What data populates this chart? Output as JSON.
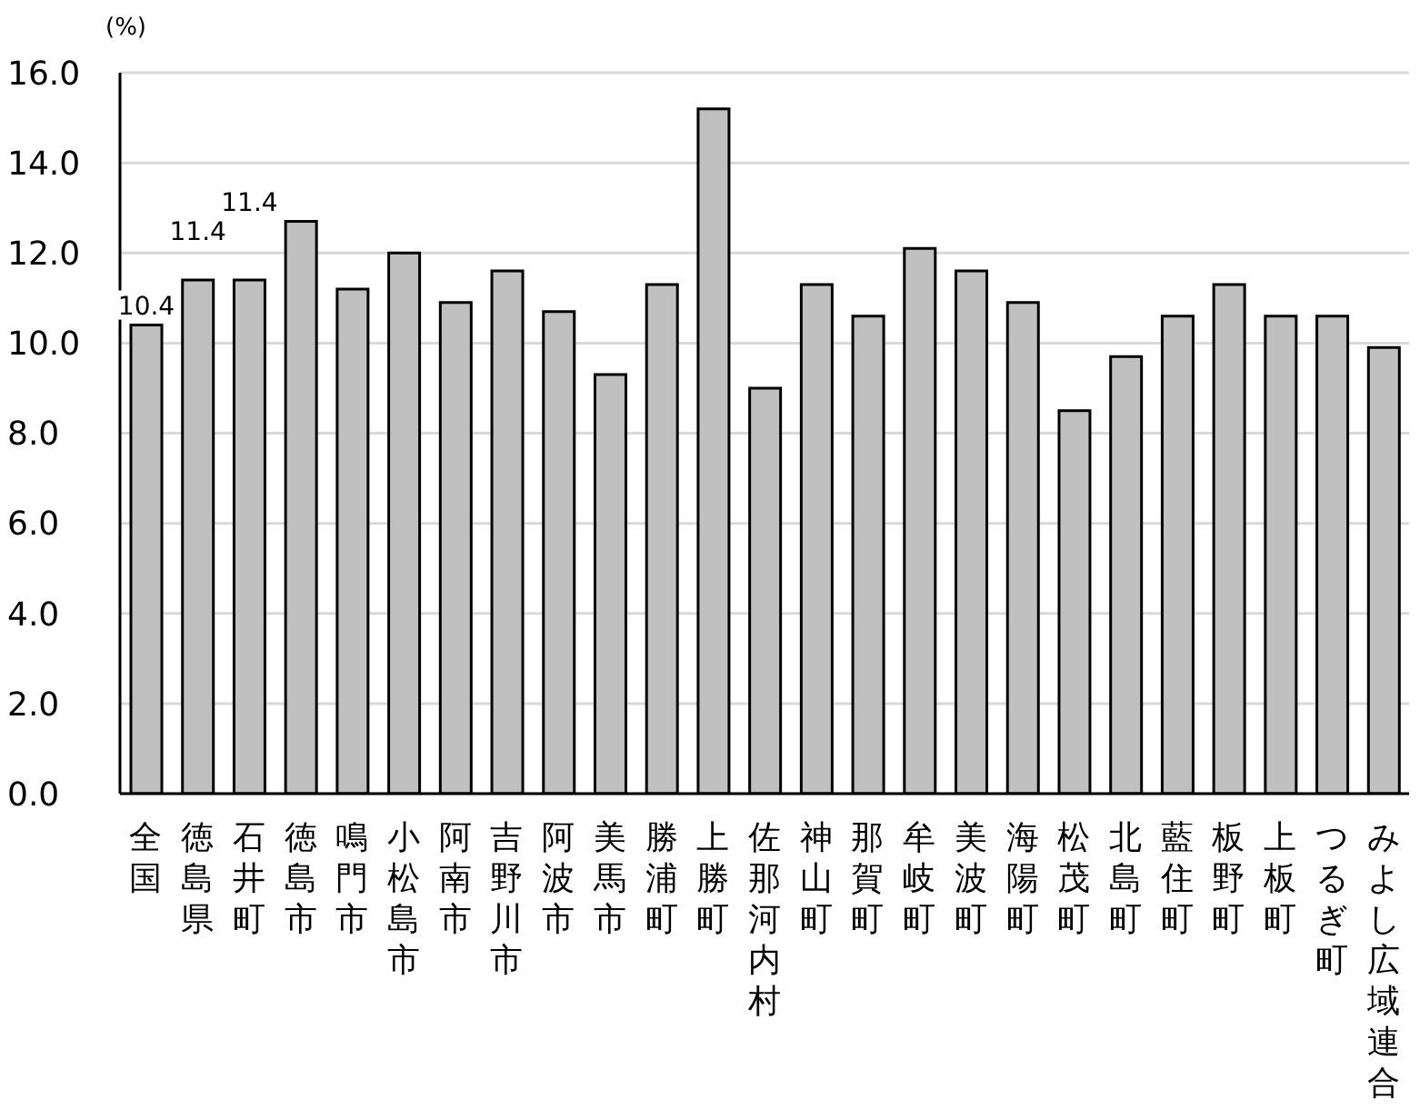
{
  "chart_data": {
    "type": "bar",
    "ylabel": "(%)",
    "categories": [
      "全国",
      "徳島県",
      "石井町",
      "徳島市",
      "鳴門市",
      "小松島市",
      "阿南市",
      "吉野川市",
      "阿波市",
      "美馬市",
      "勝浦町",
      "上勝町",
      "佐那河内村",
      "神山町",
      "那賀町",
      "牟岐町",
      "美波町",
      "海陽町",
      "松茂町",
      "北島町",
      "藍住町",
      "板野町",
      "上板町",
      "つるぎ町",
      "みよし広域連合"
    ],
    "values": [
      10.4,
      11.4,
      11.4,
      12.7,
      11.2,
      12.0,
      10.9,
      11.6,
      10.7,
      9.3,
      11.3,
      15.2,
      9.0,
      11.3,
      10.6,
      12.1,
      11.6,
      10.9,
      8.5,
      9.7,
      10.6,
      11.3,
      10.6,
      10.6,
      9.9
    ],
    "value_labels": [
      "10.4",
      "11.4",
      "11.4",
      null,
      null,
      null,
      null,
      null,
      null,
      null,
      null,
      null,
      null,
      null,
      null,
      null,
      null,
      null,
      null,
      null,
      null,
      null,
      null,
      null,
      null
    ],
    "color": "#c0c0c0",
    "ylim": [
      0,
      16
    ],
    "yticks": [
      {
        "value": 0,
        "label": "0.0"
      },
      {
        "value": 2,
        "label": "2.0"
      },
      {
        "value": 4,
        "label": "4.0"
      },
      {
        "value": 6,
        "label": "6.0"
      },
      {
        "value": 8,
        "label": "8.0"
      },
      {
        "value": 10,
        "label": "10.0"
      },
      {
        "value": 12,
        "label": "12.0"
      },
      {
        "value": 14,
        "label": "14.0"
      },
      {
        "value": 16,
        "label": "16.0"
      }
    ],
    "grid": "y"
  }
}
